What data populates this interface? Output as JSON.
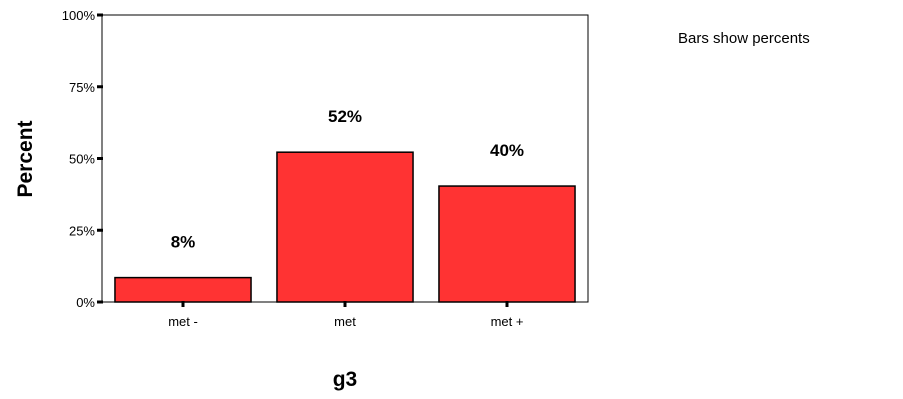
{
  "chart_data": {
    "type": "bar",
    "categories": [
      "met -",
      "met",
      "met +"
    ],
    "values": [
      8.5,
      52.2,
      40.4
    ],
    "data_labels": [
      "8%",
      "52%",
      "40%"
    ],
    "title": "",
    "xlabel": "g3",
    "ylabel": "Percent",
    "ylim": [
      0,
      100
    ],
    "yticks": [
      0,
      25,
      50,
      75,
      100
    ],
    "ytick_labels": [
      "0%",
      "25%",
      "50%",
      "75%",
      "100%"
    ],
    "grid": false,
    "bar_color": "#ff3333",
    "note": "Bars show percents"
  }
}
